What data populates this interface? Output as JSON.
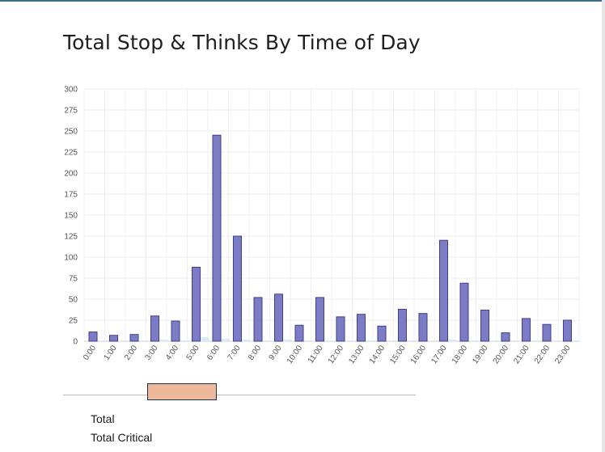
{
  "chart_data": {
    "type": "bar",
    "title": "Total Stop & Thinks By Time of Day",
    "xlabel": "",
    "ylabel": "",
    "ylim": [
      0,
      300
    ],
    "yticks": [
      0,
      25,
      50,
      75,
      100,
      125,
      150,
      175,
      200,
      225,
      250,
      275,
      300
    ],
    "categories": [
      "0:00",
      "1:00",
      "2:00",
      "3:00",
      "4:00",
      "5:00",
      "6:00",
      "7:00",
      "8:00",
      "9:00",
      "10:00",
      "11:00",
      "12:00",
      "13:00",
      "14:00",
      "15:00",
      "16:00",
      "17:00",
      "18:00",
      "19:00",
      "20:00",
      "21:00",
      "22:00",
      "23:00"
    ],
    "series": [
      {
        "name": "Total",
        "color": "#7b7cc4",
        "values": [
          11,
          7,
          8,
          30,
          24,
          88,
          245,
          125,
          52,
          56,
          19,
          52,
          29,
          32,
          18,
          38,
          33,
          120,
          69,
          37,
          10,
          27,
          20,
          25
        ]
      },
      {
        "name": "Total Critical",
        "color": "#d7ecf3",
        "values": [
          1,
          0,
          1,
          2,
          1,
          5,
          3,
          2,
          1,
          2,
          1,
          1,
          1,
          1,
          0,
          1,
          1,
          2,
          1,
          1,
          0,
          1,
          0,
          1
        ]
      }
    ],
    "grid": true,
    "legend": "bottom-left"
  },
  "scrollbar": {
    "track_color": "#b9b9b9",
    "thumb_color": "#edb99a"
  }
}
